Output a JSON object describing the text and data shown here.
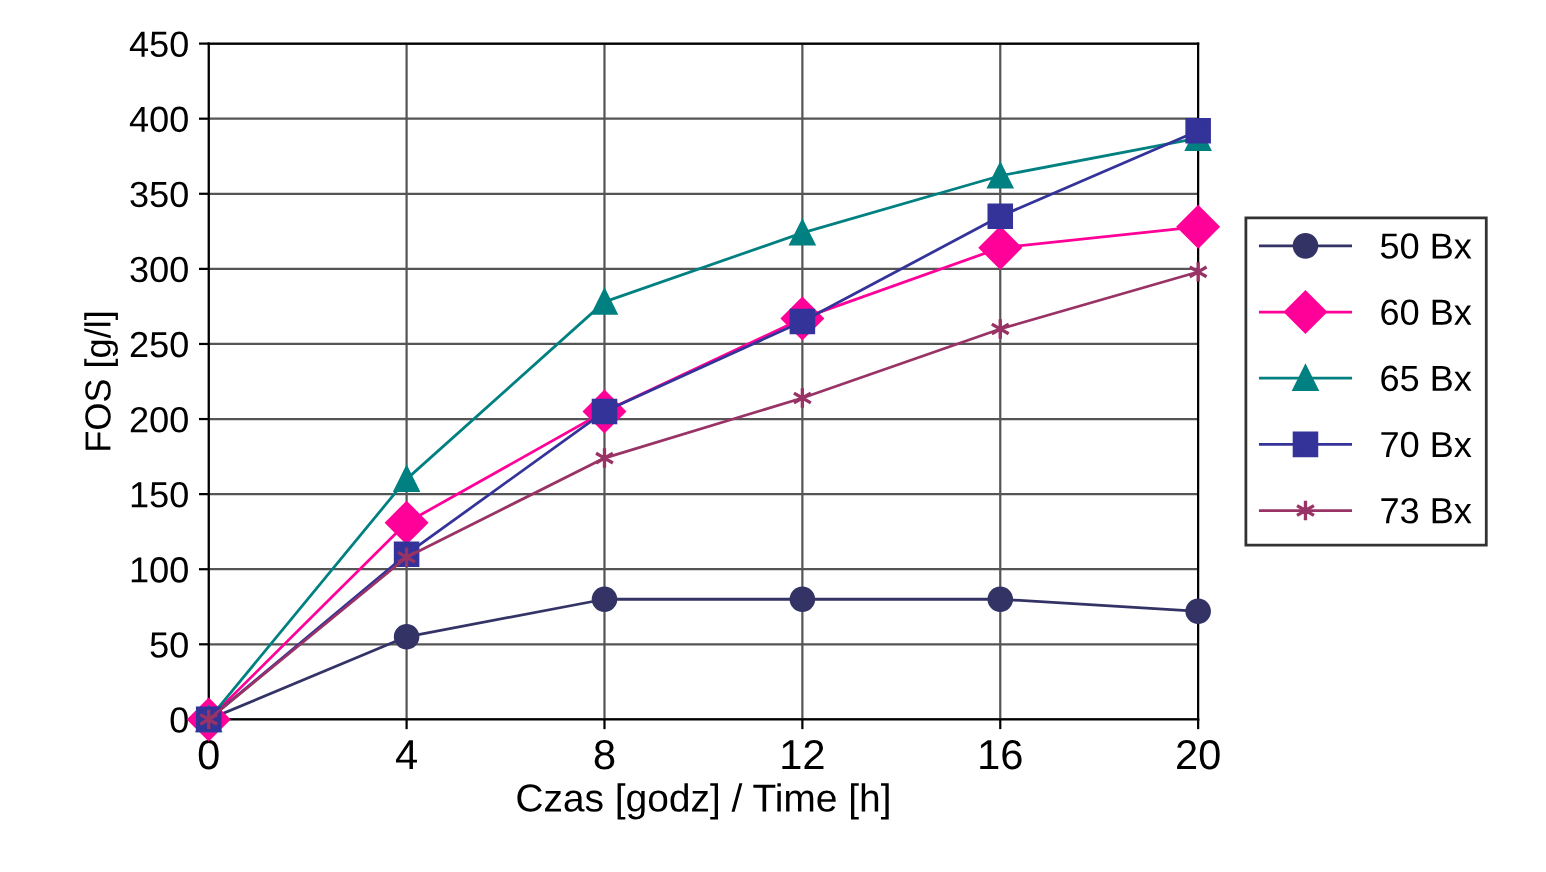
{
  "chart_data": {
    "type": "line",
    "xlabel": "Czas [godz] / Time [h]",
    "ylabel": "FOS [g/l]",
    "x": [
      0,
      4,
      8,
      12,
      16,
      20
    ],
    "xlim": [
      0,
      20
    ],
    "xticks": [
      0,
      4,
      8,
      12,
      16,
      20
    ],
    "ylim": [
      0,
      450
    ],
    "yticks": [
      0,
      50,
      100,
      150,
      200,
      250,
      300,
      350,
      400,
      450
    ],
    "grid": true,
    "legend": "right",
    "line_style": "solid",
    "series": [
      {
        "name": "50 Bx",
        "color": "#333366",
        "marker": "circle",
        "values": [
          0,
          55,
          80,
          80,
          80,
          72
        ]
      },
      {
        "name": "60 Bx",
        "color": "#ff0099",
        "marker": "diamond",
        "values": [
          0,
          131,
          205,
          267,
          314,
          328
        ]
      },
      {
        "name": "65 Bx",
        "color": "#008080",
        "marker": "triangle",
        "values": [
          0,
          160,
          278,
          324,
          362,
          387
        ]
      },
      {
        "name": "70 Bx",
        "color": "#333399",
        "marker": "square",
        "values": [
          0,
          110,
          205,
          265,
          335,
          392
        ]
      },
      {
        "name": "73 Bx",
        "color": "#993366",
        "marker": "cross",
        "values": [
          0,
          108,
          174,
          214,
          260,
          298
        ]
      }
    ]
  }
}
